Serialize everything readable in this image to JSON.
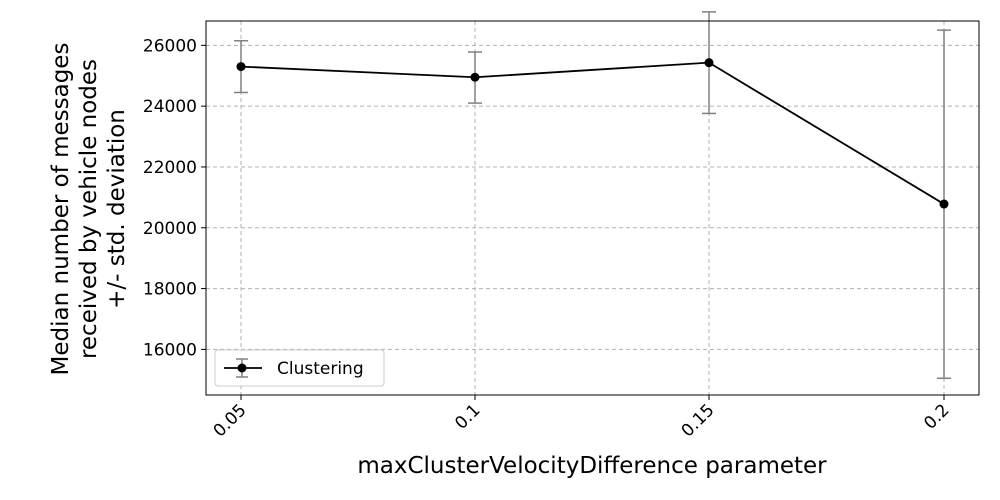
{
  "chart_data": {
    "type": "line",
    "title": "",
    "xlabel": "maxClusterVelocityDifference parameter",
    "ylabel_lines": [
      "Median number of messages",
      "received by vehicle nodes",
      "+/- std. deviation"
    ],
    "categories": [
      "0.05",
      "0.1",
      "0.15",
      "0.2"
    ],
    "series": [
      {
        "name": "Clustering",
        "values": [
          25300,
          24950,
          25430,
          20780
        ],
        "err_lower": [
          24450,
          24100,
          23760,
          15050
        ],
        "err_upper": [
          26150,
          25780,
          27100,
          26500
        ],
        "color": "#000000",
        "error_color": "#808080"
      }
    ],
    "ylim": [
      14500,
      26800
    ],
    "yticks": [
      16000,
      18000,
      20000,
      22000,
      24000,
      26000
    ],
    "ytick_labels": [
      "16000",
      "18000",
      "20000",
      "22000",
      "24000",
      "26000"
    ],
    "grid": true,
    "legend_position": "lower-left"
  }
}
